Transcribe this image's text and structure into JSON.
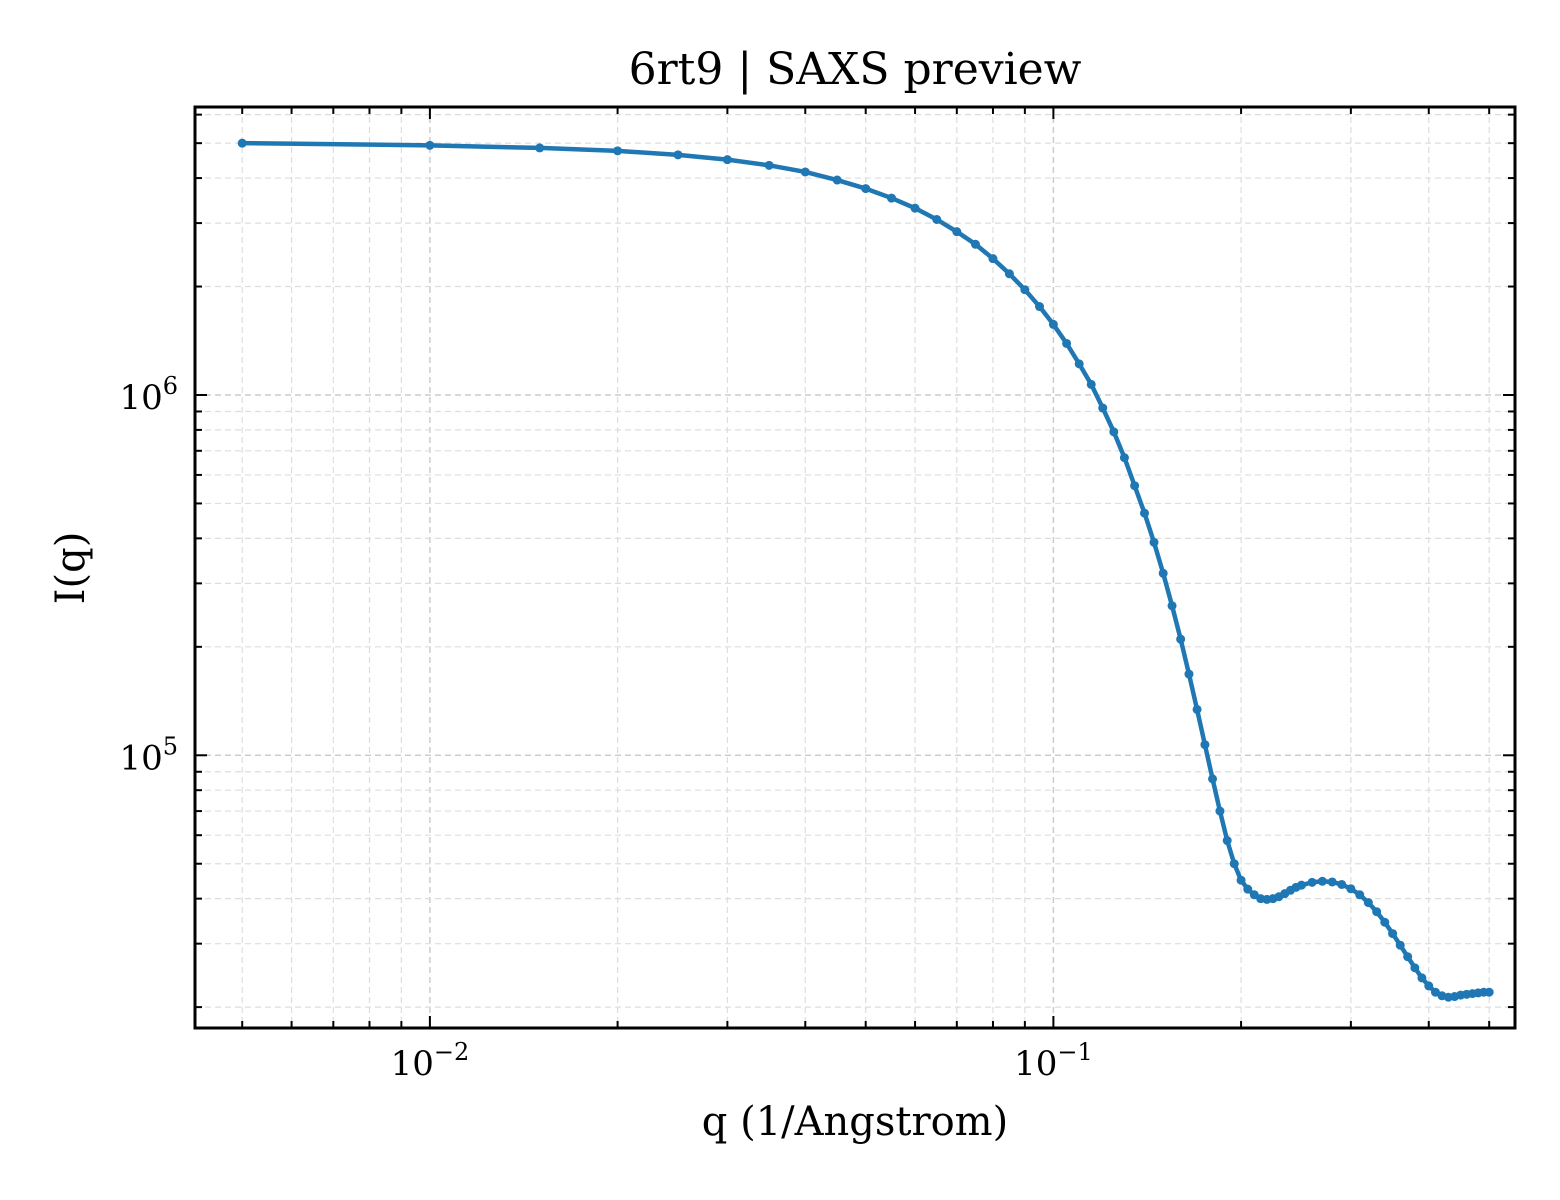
{
  "chart_data": {
    "type": "line",
    "title": "6rt9 | SAXS preview",
    "xlabel": "q (1/Angstrom)",
    "ylabel": "I(q)",
    "xscale": "log",
    "yscale": "log",
    "xlim": [
      0.0042,
      0.55
    ],
    "ylim": [
      17500,
      6300000
    ],
    "grid": true,
    "legend": "none",
    "x_ticks": [
      {
        "value": 0.01,
        "base": "10",
        "exp": "−2"
      },
      {
        "value": 0.1,
        "base": "10",
        "exp": "−1"
      }
    ],
    "y_ticks": [
      {
        "value": 100000,
        "base": "10",
        "exp": "5"
      },
      {
        "value": 1000000,
        "base": "10",
        "exp": "6"
      }
    ],
    "line_color": "#1f77b4",
    "series": [
      {
        "x": [
          0.005,
          0.01,
          0.015,
          0.02,
          0.025,
          0.03,
          0.035,
          0.04,
          0.045,
          0.05,
          0.055,
          0.06,
          0.065,
          0.07,
          0.075,
          0.08,
          0.085,
          0.09,
          0.095,
          0.1,
          0.105,
          0.11,
          0.115,
          0.12,
          0.125,
          0.13,
          0.135,
          0.14,
          0.145,
          0.15,
          0.155,
          0.16,
          0.165,
          0.17,
          0.175,
          0.18,
          0.185,
          0.19,
          0.195,
          0.2,
          0.205,
          0.21,
          0.215,
          0.22,
          0.225,
          0.23,
          0.235,
          0.24,
          0.245,
          0.25,
          0.26,
          0.27,
          0.28,
          0.29,
          0.3,
          0.31,
          0.32,
          0.33,
          0.34,
          0.35,
          0.36,
          0.37,
          0.38,
          0.39,
          0.4,
          0.41,
          0.42,
          0.43,
          0.44,
          0.45,
          0.46,
          0.47,
          0.48,
          0.49,
          0.5
        ],
        "y": [
          5000000,
          4930000,
          4850000,
          4760000,
          4640000,
          4500000,
          4340000,
          4160000,
          3950000,
          3740000,
          3520000,
          3300000,
          3070000,
          2840000,
          2620000,
          2390000,
          2170000,
          1960000,
          1760000,
          1570000,
          1390000,
          1220000,
          1070000,
          920000,
          790000,
          670000,
          560000,
          470000,
          390000,
          320000,
          260000,
          210000,
          168000,
          134000,
          107000,
          86000,
          70000,
          58000,
          50000,
          45000,
          42500,
          41000,
          40000,
          39800,
          40000,
          40500,
          41300,
          42200,
          43000,
          43600,
          44400,
          44700,
          44500,
          43800,
          42600,
          41000,
          39000,
          36800,
          34400,
          32000,
          29700,
          27600,
          25700,
          24100,
          22900,
          22000,
          21500,
          21300,
          21400,
          21600,
          21700,
          21800,
          21900,
          22000,
          22000
        ]
      }
    ]
  }
}
